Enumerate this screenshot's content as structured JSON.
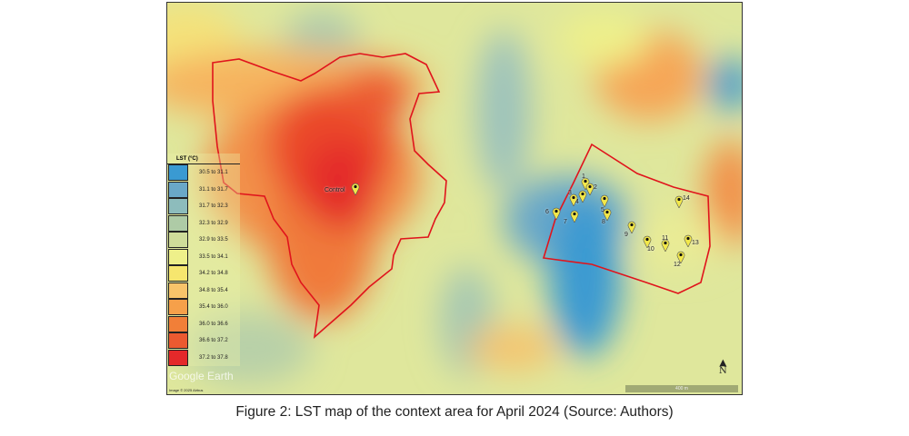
{
  "legend": {
    "title": "LST (°C)",
    "classes": [
      {
        "label": "30.5 to 31.1",
        "color": "#3a9ad2"
      },
      {
        "label": "31.1 to 31.7",
        "color": "#6aa8c8"
      },
      {
        "label": "31.7 to 32.3",
        "color": "#8dbcbc"
      },
      {
        "label": "32.3 to 32.9",
        "color": "#aecba6"
      },
      {
        "label": "32.9 to 33.5",
        "color": "#cfdc9a"
      },
      {
        "label": "33.5 to 34.1",
        "color": "#eef08a"
      },
      {
        "label": "34.2 to 34.8",
        "color": "#f6e66e"
      },
      {
        "label": "34.8 to 35.4",
        "color": "#f8c46a"
      },
      {
        "label": "35.4 to 36.0",
        "color": "#f6a04a"
      },
      {
        "label": "36.0 to 36.6",
        "color": "#f17f38"
      },
      {
        "label": "36.6 to 37.2",
        "color": "#ec5a30"
      },
      {
        "label": "37.2 to 37.8",
        "color": "#e4292a"
      }
    ]
  },
  "markers": {
    "control": "Control",
    "sites": [
      "1",
      "2",
      "3",
      "4",
      "5",
      "6",
      "7",
      "8",
      "9",
      "10",
      "11",
      "12",
      "13",
      "14"
    ]
  },
  "attribution": {
    "logo": "Google Earth",
    "image_credit": "Image © 2025 Airbus"
  },
  "scale_bar": "400 m",
  "north_arrow": "N",
  "boundary_color": "#e0141c",
  "caption": "Figure 2: LST map of the context area for April 2024 (Source: Authors)"
}
